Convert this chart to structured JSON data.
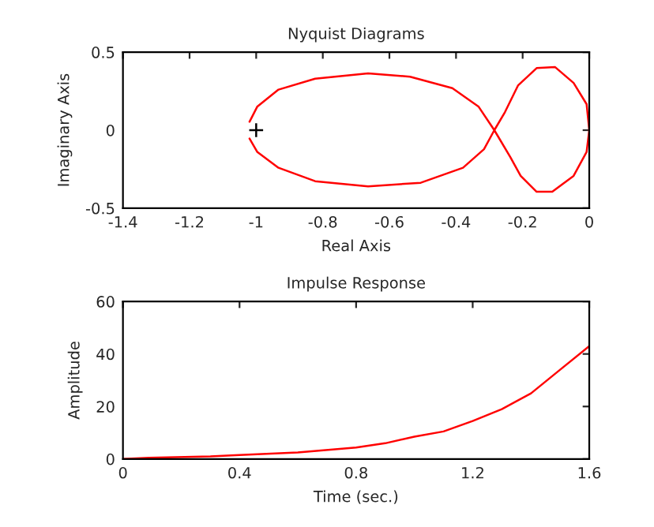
{
  "chart_data": [
    {
      "type": "line",
      "title": "Nyquist Diagrams",
      "xlabel": "Real Axis",
      "ylabel": "Imaginary Axis",
      "xlim": [
        -1.4,
        0
      ],
      "ylim": [
        -0.5,
        0.5
      ],
      "xticks": [
        -1.4,
        -1.2,
        -1,
        -0.8,
        -0.6,
        -0.4,
        -0.2,
        0
      ],
      "yticks": [
        -0.5,
        0,
        0.5
      ],
      "grid": false,
      "series": [
        {
          "color": "#ff0000",
          "x": [
            -1.02,
            -0.997,
            -0.933,
            -0.823,
            -0.664,
            -0.538,
            -0.411,
            -0.332,
            -0.285,
            -0.237,
            -0.206,
            -0.158,
            -0.111,
            -0.047,
            -0.008,
            0,
            -0.008,
            -0.047,
            -0.103,
            -0.158,
            -0.214,
            -0.253,
            -0.285,
            -0.316,
            -0.379,
            -0.506,
            -0.664,
            -0.823,
            -0.933,
            -0.997,
            -1.02
          ],
          "values": [
            0.054,
            0.15,
            0.26,
            0.33,
            0.364,
            0.343,
            0.269,
            0.15,
            0,
            -0.173,
            -0.293,
            -0.395,
            -0.395,
            -0.293,
            -0.14,
            0,
            0.167,
            0.303,
            0.405,
            0.398,
            0.286,
            0.116,
            0,
            -0.122,
            -0.241,
            -0.337,
            -0.36,
            -0.327,
            -0.241,
            -0.139,
            -0.054
          ]
        },
        {
          "type": "scatter",
          "color": "#000000",
          "marker": "cross",
          "x": [
            -1
          ],
          "values": [
            0
          ]
        }
      ]
    },
    {
      "type": "line",
      "title": "Impulse Response",
      "xlabel": "Time (sec.)",
      "ylabel": "Amplitude",
      "xlim": [
        0,
        1.6
      ],
      "ylim": [
        0,
        60
      ],
      "xticks": [
        0,
        0.4,
        0.8,
        1.2,
        1.6
      ],
      "yticks": [
        0,
        20,
        40,
        60
      ],
      "grid": false,
      "series": [
        {
          "color": "#ff0000",
          "x": [
            0,
            0.09,
            0.3,
            0.4,
            0.6,
            0.8,
            0.9,
            1.0,
            1.1,
            1.2,
            1.3,
            1.4,
            1.5,
            1.6
          ],
          "values": [
            0,
            0.5,
            1,
            1.5,
            2.5,
            4.4,
            6,
            8.5,
            10.5,
            14.5,
            19,
            25,
            34,
            43
          ]
        }
      ]
    }
  ]
}
